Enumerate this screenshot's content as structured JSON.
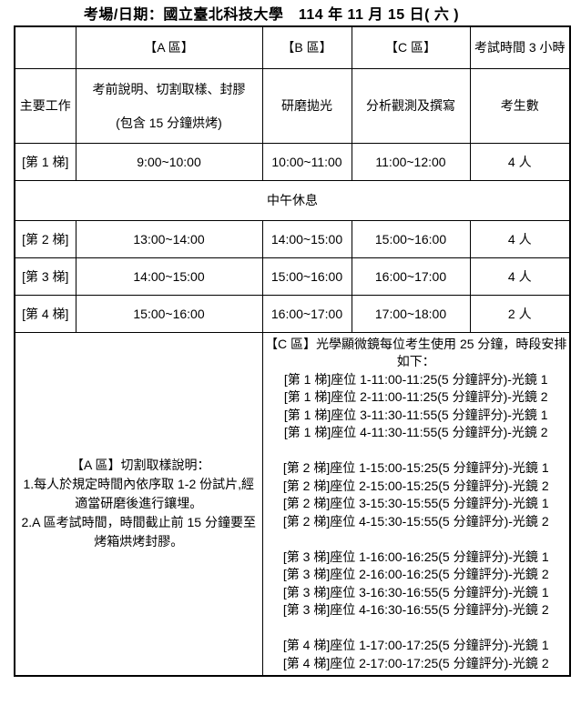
{
  "title": "考場/日期：國立臺北科技大學　114 年 11 月 15 日( 六 )",
  "table": {
    "headers": {
      "zone_a": "【A 區】",
      "zone_b": "【B 區】",
      "zone_c": "【C 區】",
      "duration": "考試時間 3 小時"
    },
    "work_row": {
      "label": "主要工作",
      "zone_a_line1": "考前說明、切割取樣、封膠",
      "zone_a_line2": "(包含 15 分鐘烘烤)",
      "zone_b": "研磨拋光",
      "zone_c": "分析觀測及撰寫",
      "count_label": "考生數"
    },
    "lunch_break": "中午休息",
    "sessions": [
      {
        "label": "[第 1 梯]",
        "zone_a": "9:00~10:00",
        "zone_b": "10:00~11:00",
        "zone_c": "11:00~12:00",
        "count": "4 人"
      },
      {
        "label": "[第 2 梯]",
        "zone_a": "13:00~14:00",
        "zone_b": "14:00~15:00",
        "zone_c": "15:00~16:00",
        "count": "4 人"
      },
      {
        "label": "[第 3 梯]",
        "zone_a": "14:00~15:00",
        "zone_b": "15:00~16:00",
        "zone_c": "16:00~17:00",
        "count": "4 人"
      },
      {
        "label": "[第 4 梯]",
        "zone_a": "15:00~16:00",
        "zone_b": "16:00~17:00",
        "zone_c": "17:00~18:00",
        "count": "2 人"
      }
    ],
    "notes_a": {
      "lines": [
        "【A 區】切割取樣說明：",
        "1.每人於規定時間內依序取 1-2 份試片,經",
        "適當研磨後進行鑲埋。",
        "2.A 區考試時間，時間截止前 15 分鐘要至",
        "烤箱烘烤封膠。"
      ]
    },
    "notes_c": {
      "intro_lines": [
        "【C 區】光學顯微鏡每位考生使用 25 分鐘，時段安排",
        "如下："
      ],
      "groups": [
        [
          "[第 1 梯]座位 1-11:00-11:25(5 分鐘評分)-光鏡 1",
          "[第 1 梯]座位 2-11:00-11:25(5 分鐘評分)-光鏡 2",
          "[第 1 梯]座位 3-11:30-11:55(5 分鐘評分)-光鏡 1",
          "[第 1 梯]座位 4-11:30-11:55(5 分鐘評分)-光鏡 2"
        ],
        [
          "[第 2 梯]座位 1-15:00-15:25(5 分鐘評分)-光鏡 1",
          "[第 2 梯]座位 2-15:00-15:25(5 分鐘評分)-光鏡 2",
          "[第 2 梯]座位 3-15:30-15:55(5 分鐘評分)-光鏡 1",
          "[第 2 梯]座位 4-15:30-15:55(5 分鐘評分)-光鏡 2"
        ],
        [
          "[第 3 梯]座位 1-16:00-16:25(5 分鐘評分)-光鏡 1",
          "[第 3 梯]座位 2-16:00-16:25(5 分鐘評分)-光鏡 2",
          "[第 3 梯]座位 3-16:30-16:55(5 分鐘評分)-光鏡 1",
          "[第 3 梯]座位 4-16:30-16:55(5 分鐘評分)-光鏡 2"
        ],
        [
          "[第 4 梯]座位 1-17:00-17:25(5 分鐘評分)-光鏡 1",
          "[第 4 梯]座位 2-17:00-17:25(5 分鐘評分)-光鏡 2"
        ]
      ]
    }
  }
}
